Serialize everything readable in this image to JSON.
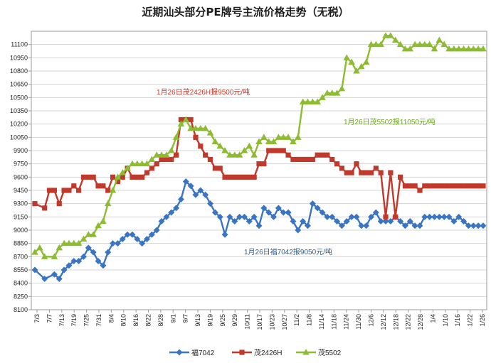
{
  "chart_data": {
    "type": "line",
    "title": "近期汕头部分PE牌号主流价格走势（无税）",
    "xlabel": "",
    "ylabel": "",
    "ylim": [
      8100,
      11250
    ],
    "yticks": [
      8100,
      8250,
      8400,
      8550,
      8700,
      8850,
      9000,
      9150,
      9300,
      9450,
      9600,
      9750,
      9900,
      10050,
      10200,
      10350,
      10500,
      10650,
      10800,
      10950,
      11100
    ],
    "x_tick_labels": [
      "7/3",
      "7/7",
      "7/13",
      "7/19",
      "7/25",
      "7/31",
      "8/4",
      "8/10",
      "8/16",
      "8/22",
      "8/28",
      "9/1",
      "9/7",
      "9/13",
      "9/19",
      "9/25",
      "9/29",
      "10/11",
      "10/17",
      "10/23",
      "10/27",
      "11/2",
      "11/8",
      "11/14",
      "11/18",
      "11/24",
      "11/30",
      "12/6",
      "12/12",
      "12/18",
      "12/22",
      "12/28",
      "1/4",
      "1/10",
      "1/16",
      "1/22",
      "1/26"
    ],
    "grid": true,
    "legend_position": "bottom",
    "series": [
      {
        "name": "福7042",
        "color": "#3a75c4",
        "marker": "diamond",
        "values": [
          [
            0,
            8550
          ],
          [
            2,
            8450
          ],
          [
            4,
            8500
          ],
          [
            5,
            8450
          ],
          [
            6,
            8550
          ],
          [
            7,
            8600
          ],
          [
            8,
            8650
          ],
          [
            9,
            8650
          ],
          [
            10,
            8700
          ],
          [
            11,
            8800
          ],
          [
            12,
            8750
          ],
          [
            13,
            8650
          ],
          [
            14,
            8600
          ],
          [
            15,
            8750
          ],
          [
            16,
            8850
          ],
          [
            17,
            8850
          ],
          [
            18,
            8900
          ],
          [
            19,
            8950
          ],
          [
            20,
            8950
          ],
          [
            21,
            8900
          ],
          [
            22,
            8850
          ],
          [
            23,
            8900
          ],
          [
            24,
            8950
          ],
          [
            25,
            9000
          ],
          [
            26,
            9100
          ],
          [
            27,
            9150
          ],
          [
            28,
            9200
          ],
          [
            29,
            9250
          ],
          [
            30,
            9350
          ],
          [
            31,
            9550
          ],
          [
            32,
            9500
          ],
          [
            33,
            9400
          ],
          [
            34,
            9450
          ],
          [
            35,
            9400
          ],
          [
            36,
            9300
          ],
          [
            37,
            9200
          ],
          [
            38,
            9150
          ],
          [
            39,
            8950
          ],
          [
            40,
            9150
          ],
          [
            41,
            9100
          ],
          [
            42,
            9150
          ],
          [
            43,
            9150
          ],
          [
            44,
            9100
          ],
          [
            45,
            9150
          ],
          [
            46,
            9050
          ],
          [
            47,
            9250
          ],
          [
            48,
            9200
          ],
          [
            49,
            9150
          ],
          [
            50,
            9250
          ],
          [
            51,
            9200
          ],
          [
            52,
            9200
          ],
          [
            53,
            9100
          ],
          [
            54,
            9000
          ],
          [
            55,
            9100
          ],
          [
            56,
            9050
          ],
          [
            57,
            9300
          ],
          [
            58,
            9250
          ],
          [
            59,
            9200
          ],
          [
            60,
            9150
          ],
          [
            61,
            9150
          ],
          [
            62,
            9100
          ],
          [
            63,
            9050
          ],
          [
            64,
            9100
          ],
          [
            65,
            9150
          ],
          [
            66,
            9150
          ],
          [
            67,
            9050
          ],
          [
            68,
            9050
          ],
          [
            69,
            9150
          ],
          [
            70,
            9200
          ],
          [
            71,
            9100
          ],
          [
            72,
            9100
          ],
          [
            73,
            9100
          ],
          [
            74,
            9150
          ],
          [
            75,
            9100
          ],
          [
            76,
            9050
          ],
          [
            77,
            9100
          ],
          [
            78,
            9050
          ],
          [
            79,
            9050
          ],
          [
            80,
            9150
          ],
          [
            81,
            9150
          ],
          [
            82,
            9150
          ],
          [
            83,
            9150
          ],
          [
            84,
            9150
          ],
          [
            85,
            9150
          ],
          [
            86,
            9100
          ],
          [
            87,
            9150
          ],
          [
            88,
            9100
          ],
          [
            89,
            9050
          ],
          [
            90,
            9050
          ],
          [
            91,
            9050
          ],
          [
            92,
            9050
          ]
        ]
      },
      {
        "name": "茂2426H",
        "color": "#c0392b",
        "marker": "square",
        "values": [
          [
            0,
            9300
          ],
          [
            2,
            9250
          ],
          [
            3,
            9450
          ],
          [
            4,
            9450
          ],
          [
            5,
            9300
          ],
          [
            6,
            9450
          ],
          [
            7,
            9450
          ],
          [
            8,
            9500
          ],
          [
            9,
            9450
          ],
          [
            10,
            9600
          ],
          [
            11,
            9600
          ],
          [
            12,
            9600
          ],
          [
            13,
            9500
          ],
          [
            14,
            9500
          ],
          [
            15,
            9450
          ],
          [
            16,
            9600
          ],
          [
            17,
            9550
          ],
          [
            18,
            9600
          ],
          [
            19,
            9700
          ],
          [
            20,
            9600
          ],
          [
            21,
            9600
          ],
          [
            22,
            9600
          ],
          [
            23,
            9650
          ],
          [
            24,
            9700
          ],
          [
            25,
            9750
          ],
          [
            26,
            9800
          ],
          [
            27,
            9800
          ],
          [
            28,
            9800
          ],
          [
            29,
            9850
          ],
          [
            30,
            10250
          ],
          [
            31,
            10250
          ],
          [
            32,
            10250
          ],
          [
            33,
            10050
          ],
          [
            34,
            9950
          ],
          [
            35,
            9850
          ],
          [
            36,
            9800
          ],
          [
            37,
            9700
          ],
          [
            38,
            9700
          ],
          [
            39,
            9600
          ],
          [
            40,
            9600
          ],
          [
            41,
            9600
          ],
          [
            42,
            9600
          ],
          [
            43,
            9600
          ],
          [
            44,
            9600
          ],
          [
            45,
            9600
          ],
          [
            46,
            9750
          ],
          [
            47,
            9750
          ],
          [
            48,
            9900
          ],
          [
            49,
            9900
          ],
          [
            50,
            9900
          ],
          [
            51,
            9900
          ],
          [
            52,
            9850
          ],
          [
            53,
            9800
          ],
          [
            54,
            9800
          ],
          [
            55,
            9800
          ],
          [
            56,
            9800
          ],
          [
            57,
            9800
          ],
          [
            58,
            9850
          ],
          [
            59,
            9850
          ],
          [
            60,
            9850
          ],
          [
            61,
            9800
          ],
          [
            62,
            9750
          ],
          [
            63,
            9700
          ],
          [
            64,
            9650
          ],
          [
            65,
            9650
          ],
          [
            66,
            9750
          ],
          [
            67,
            9650
          ],
          [
            68,
            9650
          ],
          [
            69,
            9650
          ],
          [
            70,
            9700
          ],
          [
            71,
            9650
          ],
          [
            72,
            9150
          ],
          [
            73,
            9650
          ],
          [
            74,
            9150
          ],
          [
            75,
            9600
          ],
          [
            76,
            9500
          ],
          [
            77,
            9500
          ],
          [
            78,
            9500
          ],
          [
            79,
            9450
          ],
          [
            80,
            9500
          ],
          [
            81,
            9500
          ],
          [
            82,
            9500
          ],
          [
            83,
            9500
          ],
          [
            84,
            9500
          ],
          [
            85,
            9500
          ],
          [
            86,
            9500
          ],
          [
            87,
            9500
          ],
          [
            88,
            9500
          ],
          [
            89,
            9500
          ],
          [
            90,
            9500
          ],
          [
            91,
            9500
          ],
          [
            92,
            9500
          ]
        ]
      },
      {
        "name": "茂5502",
        "color": "#8dbb32",
        "marker": "triangle",
        "values": [
          [
            0,
            8750
          ],
          [
            1,
            8800
          ],
          [
            2,
            8700
          ],
          [
            4,
            8700
          ],
          [
            5,
            8800
          ],
          [
            6,
            8850
          ],
          [
            7,
            8850
          ],
          [
            8,
            8850
          ],
          [
            9,
            8850
          ],
          [
            10,
            8900
          ],
          [
            11,
            8950
          ],
          [
            12,
            8950
          ],
          [
            13,
            9050
          ],
          [
            14,
            9100
          ],
          [
            15,
            9300
          ],
          [
            16,
            9450
          ],
          [
            17,
            9600
          ],
          [
            18,
            9650
          ],
          [
            19,
            9700
          ],
          [
            20,
            9750
          ],
          [
            21,
            9750
          ],
          [
            22,
            9750
          ],
          [
            23,
            9750
          ],
          [
            24,
            9800
          ],
          [
            25,
            9850
          ],
          [
            26,
            9850
          ],
          [
            27,
            9850
          ],
          [
            28,
            9900
          ],
          [
            29,
            10050
          ],
          [
            30,
            10200
          ],
          [
            31,
            10250
          ],
          [
            32,
            10150
          ],
          [
            33,
            10150
          ],
          [
            34,
            10150
          ],
          [
            35,
            10150
          ],
          [
            36,
            10100
          ],
          [
            37,
            10000
          ],
          [
            38,
            9950
          ],
          [
            39,
            9900
          ],
          [
            40,
            9850
          ],
          [
            41,
            9850
          ],
          [
            42,
            9850
          ],
          [
            43,
            9900
          ],
          [
            44,
            9950
          ],
          [
            45,
            9850
          ],
          [
            46,
            10000
          ],
          [
            47,
            10050
          ],
          [
            48,
            10000
          ],
          [
            49,
            10000
          ],
          [
            50,
            10050
          ],
          [
            51,
            10050
          ],
          [
            52,
            10050
          ],
          [
            53,
            10000
          ],
          [
            54,
            10050
          ],
          [
            55,
            10450
          ],
          [
            56,
            10450
          ],
          [
            57,
            10450
          ],
          [
            58,
            10450
          ],
          [
            59,
            10500
          ],
          [
            60,
            10550
          ],
          [
            61,
            10550
          ],
          [
            62,
            10550
          ],
          [
            63,
            10600
          ],
          [
            64,
            10950
          ],
          [
            65,
            10900
          ],
          [
            66,
            10800
          ],
          [
            67,
            10850
          ],
          [
            68,
            10900
          ],
          [
            69,
            11100
          ],
          [
            70,
            11100
          ],
          [
            71,
            11100
          ],
          [
            72,
            11200
          ],
          [
            73,
            11200
          ],
          [
            74,
            11150
          ],
          [
            75,
            11100
          ],
          [
            76,
            11050
          ],
          [
            77,
            11050
          ],
          [
            78,
            11100
          ],
          [
            79,
            11100
          ],
          [
            80,
            11100
          ],
          [
            81,
            11100
          ],
          [
            82,
            11050
          ],
          [
            83,
            11150
          ],
          [
            84,
            11100
          ],
          [
            85,
            11050
          ],
          [
            86,
            11050
          ],
          [
            87,
            11050
          ],
          [
            88,
            11050
          ],
          [
            89,
            11050
          ],
          [
            90,
            11050
          ],
          [
            91,
            11050
          ],
          [
            92,
            11050
          ]
        ]
      }
    ],
    "annotations": [
      {
        "text": "1月26日茂2426H报9500元/吨",
        "color": "#c0392b"
      },
      {
        "text": "1月26日茂5502报11050元/吨",
        "color": "#6aa121"
      },
      {
        "text": "1月26日福7042报9050元/吨",
        "color": "#2f5d8a"
      }
    ]
  }
}
